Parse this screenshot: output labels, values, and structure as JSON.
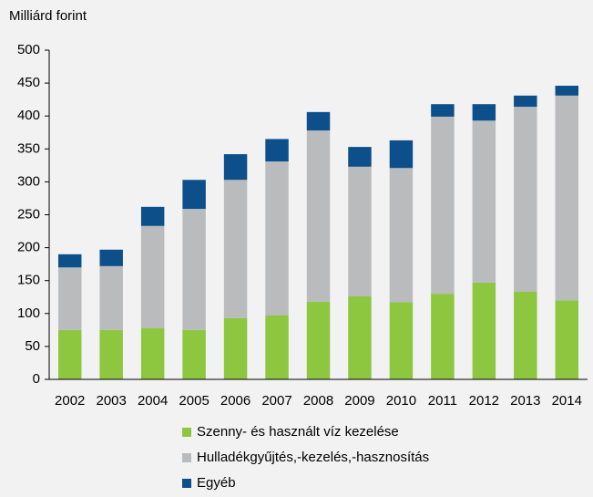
{
  "chart_data": {
    "type": "stacked_bar",
    "axis_label": "Milliárd forint",
    "categories": [
      "2002",
      "2003",
      "2004",
      "2005",
      "2006",
      "2007",
      "2008",
      "2009",
      "2010",
      "2011",
      "2012",
      "2013",
      "2014"
    ],
    "series": [
      {
        "name": "Szenny- és használt víz kezelése",
        "color": "#8dc63f",
        "values": [
          75,
          75,
          78,
          75,
          93,
          97,
          118,
          126,
          117,
          130,
          147,
          133,
          120
        ]
      },
      {
        "name": "Hulladékgyűjtés,-kezelés,-hasznosítás",
        "color": "#b9bbbd",
        "values": [
          95,
          97,
          155,
          184,
          210,
          234,
          260,
          197,
          204,
          269,
          246,
          281,
          311
        ]
      },
      {
        "name": "Egyéb",
        "color": "#0d4f8b",
        "values": [
          20,
          25,
          29,
          44,
          39,
          34,
          28,
          30,
          42,
          19,
          25,
          17,
          15
        ]
      }
    ],
    "ylim": [
      0,
      500
    ],
    "yticks": [
      0,
      50,
      100,
      150,
      200,
      250,
      300,
      350,
      400,
      450,
      500
    ]
  }
}
